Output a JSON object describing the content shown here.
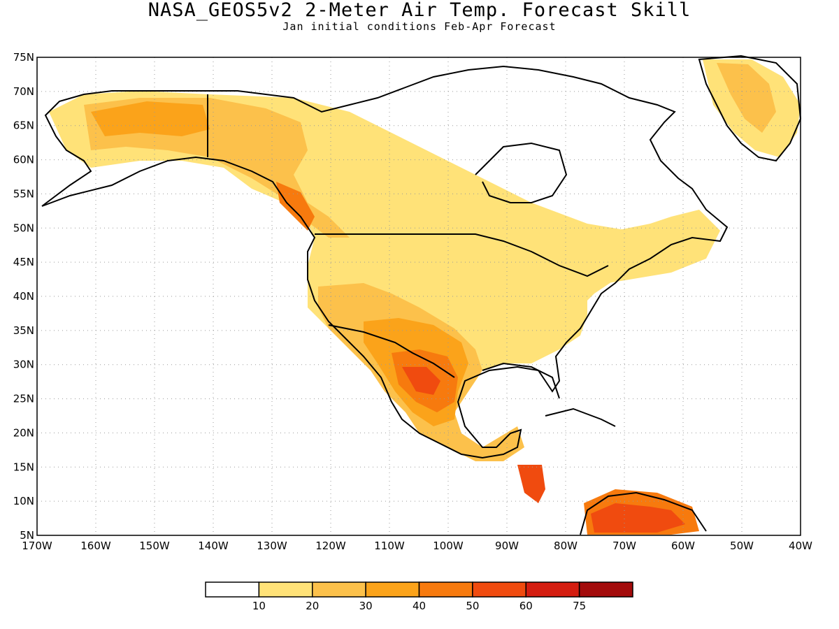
{
  "title": "NASA_GEOS5v2 2-Meter Air Temp. Forecast Skill",
  "subtitle": "Jan initial conditions  Feb-Apr Forecast",
  "map": {
    "lat_labels": [
      "75N",
      "70N",
      "65N",
      "60N",
      "55N",
      "50N",
      "45N",
      "40N",
      "35N",
      "30N",
      "25N",
      "20N",
      "15N",
      "10N",
      "5N"
    ],
    "lon_labels": [
      "170W",
      "160W",
      "150W",
      "140W",
      "130W",
      "120W",
      "110W",
      "100W",
      "90W",
      "80W",
      "70W",
      "60W",
      "50W",
      "40W"
    ]
  },
  "colorbar": {
    "colors": [
      "#ffffff",
      "#ffe278",
      "#fcc14b",
      "#fba31a",
      "#f77a0e",
      "#f04b0f",
      "#d41d10",
      "#a30b0b"
    ],
    "labels": [
      "10",
      "20",
      "30",
      "40",
      "50",
      "60",
      "75"
    ]
  }
}
